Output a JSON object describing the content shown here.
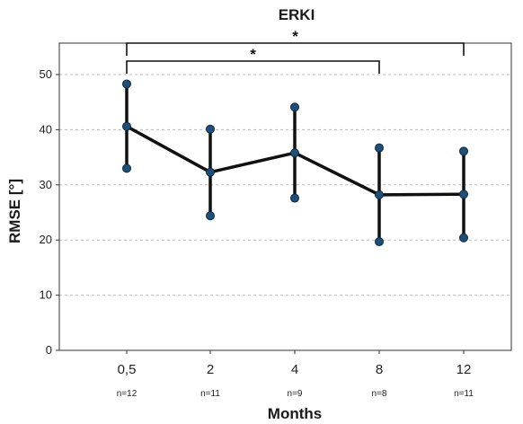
{
  "chart_data": {
    "type": "line",
    "title": "ERKI",
    "xlabel": "Months",
    "ylabel": "RMSE [°]",
    "ylim": [
      0,
      55
    ],
    "yticks": [
      0,
      10,
      20,
      30,
      40,
      50
    ],
    "grid": true,
    "categories": [
      "0,5",
      "2",
      "4",
      "8",
      "12"
    ],
    "n_labels": [
      "n=12",
      "n=11",
      "n=9",
      "n=8",
      "n=11"
    ],
    "series": [
      {
        "values": [
          40.6,
          32.3,
          35.8,
          28.2,
          28.3
        ],
        "error_upper": [
          48.3,
          40.1,
          44.1,
          36.7,
          36.1
        ],
        "error_lower": [
          33.0,
          24.4,
          27.6,
          19.7,
          20.4
        ]
      }
    ],
    "significance": [
      {
        "from": "0,5",
        "to": "12",
        "label": "*"
      },
      {
        "from": "0,5",
        "to": "8",
        "label": "*"
      }
    ],
    "colors": {
      "line": "#111111",
      "marker": "#1f4e79",
      "grid": "#bbbbbb"
    }
  }
}
